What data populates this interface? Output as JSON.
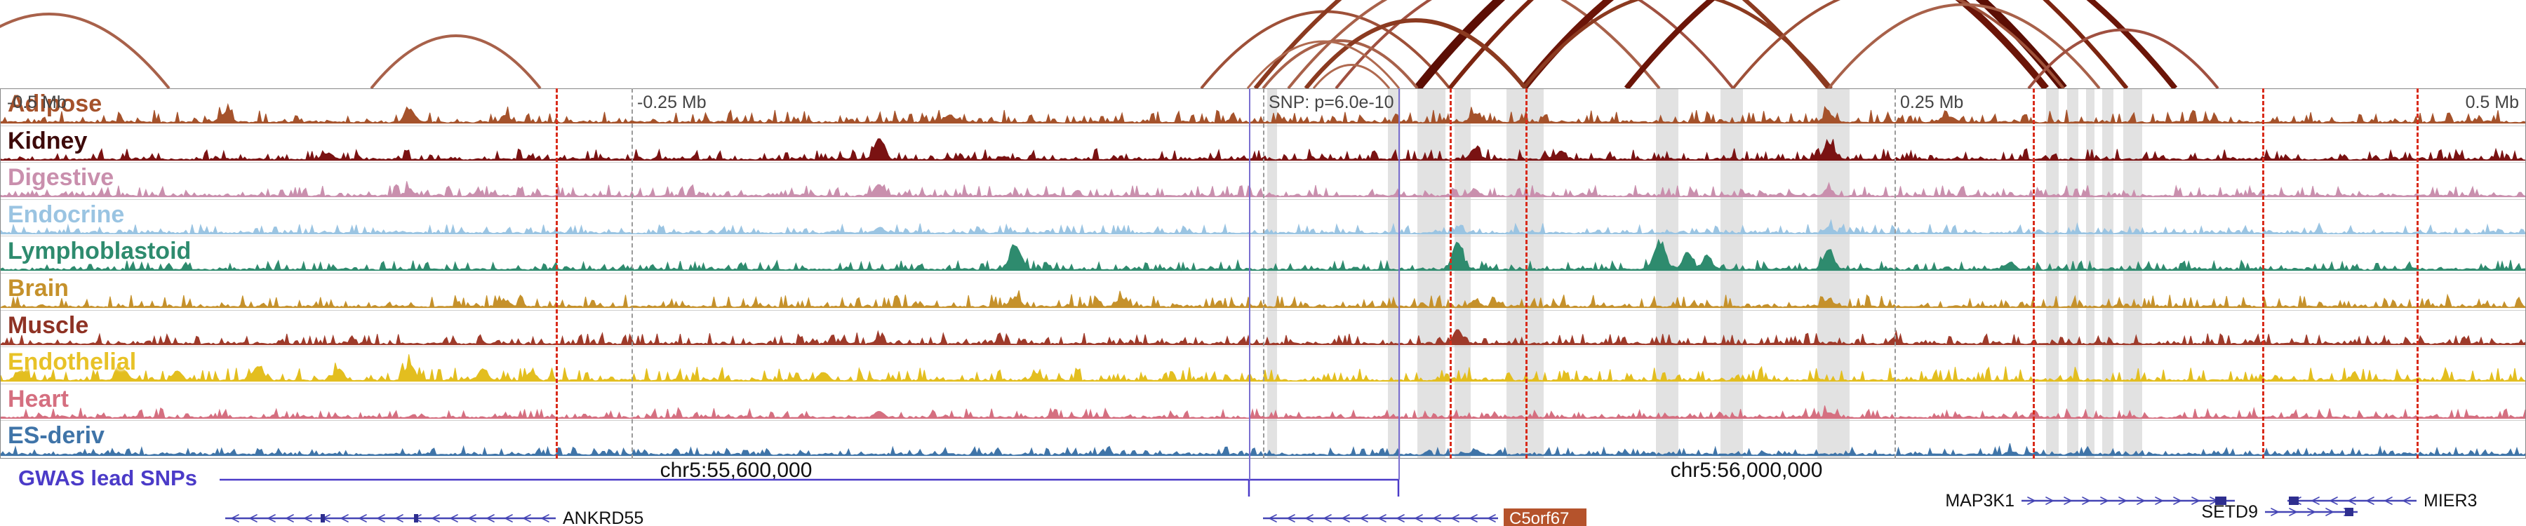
{
  "axis": {
    "ticks": [
      {
        "label": "-0.5 Mb",
        "offset": -0.5,
        "align": "left"
      },
      {
        "label": "-0.25 Mb",
        "offset": -0.25,
        "align": "inline"
      },
      {
        "label": "SNP: p=6.0e-10",
        "offset": 0,
        "align": "inline"
      },
      {
        "label": "0.25 Mb",
        "offset": 0.25,
        "align": "inline"
      },
      {
        "label": "0.5 Mb",
        "offset": 0.5,
        "align": "right"
      }
    ]
  },
  "chart_data": {
    "type": "area",
    "subtype": "genome-browser-multitrack",
    "x_range_mb": [
      -0.5,
      0.5
    ],
    "gridlines_mb": [
      -0.25,
      0,
      0.25
    ],
    "red_dashed_lines_mb": [
      -0.28,
      0.0739,
      0.1039,
      0.3047,
      0.3956,
      0.4567
    ],
    "snp_region_lines_mb": [
      -0.0056,
      0.0536
    ],
    "highlights_mb": [
      [
        0.0017,
        0.0056
      ],
      [
        0.0494,
        0.0544
      ],
      [
        0.0611,
        0.0722
      ],
      [
        0.0758,
        0.0822
      ],
      [
        0.0964,
        0.1111
      ],
      [
        0.1556,
        0.1644
      ],
      [
        0.1811,
        0.19
      ],
      [
        0.2194,
        0.2322
      ],
      [
        0.31,
        0.315
      ],
      [
        0.3183,
        0.3228
      ],
      [
        0.3258,
        0.3292
      ],
      [
        0.3322,
        0.3367
      ],
      [
        0.3406,
        0.3481
      ]
    ],
    "arcs": [
      [
        -0.528,
        -0.433,
        2,
        "#A8614A"
      ],
      [
        -0.353,
        -0.286,
        2,
        "#A8614A"
      ],
      [
        -0.0244,
        0.0739,
        2,
        "#9E5038"
      ],
      [
        -0.003,
        0.224,
        3,
        "#8B3A20"
      ],
      [
        0.01,
        0.157,
        2,
        "#A8614A"
      ],
      [
        0.029,
        0.186,
        2,
        "#A05040"
      ],
      [
        0.061,
        0.317,
        6,
        "#5C0E04"
      ],
      [
        0.103,
        0.31,
        5,
        "#6B1508"
      ],
      [
        0.074,
        0.342,
        3,
        "#7B2410"
      ],
      [
        0.0,
        0.061,
        2,
        "#A8614A"
      ],
      [
        0.103,
        0.225,
        2.5,
        "#8B3A20"
      ],
      [
        0.186,
        0.317,
        2,
        "#9E5038"
      ],
      [
        0.144,
        0.361,
        4,
        "#6B1508"
      ],
      [
        0.224,
        0.331,
        2,
        "#A8614A"
      ],
      [
        0.303,
        0.378,
        2,
        "#A05040"
      ],
      [
        0.017,
        0.104,
        3,
        "#8B3A20"
      ],
      [
        -0.006,
        0.054,
        1.5,
        "#B06A50"
      ],
      [
        0.02,
        0.05,
        1.5,
        "#B06A50"
      ]
    ],
    "tracks": [
      {
        "label": "Adipose",
        "color": "#A5522B",
        "label_color": "#A5522B",
        "seed": 11,
        "noise": 8,
        "peaks": [
          [
            -0.411,
            12,
            8
          ],
          [
            -0.338,
            18,
            7
          ],
          [
            -0.3,
            9,
            6
          ],
          [
            -0.124,
            10,
            7
          ],
          [
            0.084,
            12,
            7
          ],
          [
            0.224,
            12,
            7
          ],
          [
            0.272,
            8,
            7
          ]
        ]
      },
      {
        "label": "Kidney",
        "color": "#7A1212",
        "label_color": "#3D0A0A",
        "seed": 22,
        "noise": 7,
        "peaks": [
          [
            -0.37,
            8,
            6
          ],
          [
            -0.152,
            30,
            7
          ],
          [
            0.084,
            14,
            6
          ],
          [
            0.118,
            12,
            6
          ],
          [
            0.224,
            22,
            7
          ]
        ]
      },
      {
        "label": "Digestive",
        "color": "#C98FAD",
        "label_color": "#C98FAD",
        "seed": 33,
        "noise": 7,
        "peaks": [
          [
            -0.338,
            8,
            6
          ],
          [
            -0.152,
            16,
            7
          ],
          [
            0.084,
            8,
            6
          ],
          [
            0.224,
            10,
            6
          ]
        ]
      },
      {
        "label": "Endocrine",
        "color": "#9AC4E2",
        "label_color": "#9AC4E2",
        "seed": 44,
        "noise": 6,
        "peaks": [
          [
            -0.152,
            8,
            6
          ],
          [
            0.077,
            6,
            6
          ],
          [
            0.224,
            8,
            6
          ]
        ]
      },
      {
        "label": "Lymphoblastoid",
        "color": "#2E8B6E",
        "label_color": "#2E8B6E",
        "seed": 55,
        "noise": 6,
        "peaks": [
          [
            -0.098,
            34,
            8
          ],
          [
            0.077,
            40,
            7
          ],
          [
            0.157,
            36,
            8
          ],
          [
            0.168,
            26,
            6
          ],
          [
            0.176,
            20,
            6
          ],
          [
            0.224,
            28,
            7
          ],
          [
            0.296,
            10,
            6
          ]
        ]
      },
      {
        "label": "Brain",
        "color": "#C5912B",
        "label_color": "#C5912B",
        "seed": 66,
        "noise": 8,
        "peaks": [
          [
            -0.3,
            8,
            6
          ],
          [
            -0.098,
            12,
            7
          ],
          [
            -0.056,
            10,
            7
          ],
          [
            0.084,
            10,
            6
          ],
          [
            0.224,
            10,
            6
          ]
        ]
      },
      {
        "label": "Muscle",
        "color": "#9E3A2A",
        "label_color": "#8E3224",
        "seed": 77,
        "noise": 7,
        "peaks": [
          [
            -0.152,
            8,
            6
          ],
          [
            0.077,
            20,
            6
          ],
          [
            0.25,
            6,
            6
          ]
        ]
      },
      {
        "label": "Endothelial",
        "color": "#E3BE1F",
        "label_color": "#E8C227",
        "seed": 88,
        "noise": 9,
        "peaks": [
          [
            -0.492,
            14,
            7
          ],
          [
            -0.452,
            18,
            7
          ],
          [
            -0.43,
            14,
            6
          ],
          [
            -0.398,
            20,
            7
          ],
          [
            -0.366,
            16,
            6
          ],
          [
            -0.338,
            22,
            7
          ],
          [
            -0.309,
            16,
            6
          ],
          [
            -0.29,
            12,
            6
          ],
          [
            -0.174,
            12,
            6
          ],
          [
            -0.09,
            10,
            6
          ]
        ]
      },
      {
        "label": "Heart",
        "color": "#D56F80",
        "label_color": "#D56F80",
        "seed": 99,
        "noise": 6,
        "peaks": [
          [
            -0.152,
            8,
            6
          ],
          [
            0.224,
            6,
            6
          ]
        ]
      },
      {
        "label": "ES-deriv",
        "color": "#3F74A8",
        "label_color": "#3F74A8",
        "seed": 110,
        "noise": 5,
        "peaks": [
          [
            0.084,
            6,
            6
          ],
          [
            0.296,
            5,
            5
          ]
        ]
      }
    ],
    "coordinate_labels": [
      {
        "text": "chr5:55,600,000",
        "offset_mb": -0.2086
      },
      {
        "text": "chr5:56,000,000",
        "offset_mb": 0.1914
      }
    ],
    "gwas_track": {
      "label": "GWAS lead SNPs",
      "color": "#4B3BC8",
      "line_start_mb": -0.413,
      "snp_ticks_mb": [
        -0.0056,
        0.0536
      ]
    },
    "genes": [
      {
        "name": "ANKRD55",
        "start_mb": -0.4108,
        "end_mb": -0.28,
        "strand": "-",
        "y": 85,
        "label_side": "right",
        "blocks_mb": [
          [
            -0.373,
            -0.3714
          ],
          [
            -0.336,
            -0.3344
          ]
        ]
      },
      {
        "name": "C5orf67",
        "start_mb": 0.0,
        "end_mb": 0.0931,
        "strand": "-",
        "y": 85,
        "label_side": "right",
        "boxed": true,
        "box_color": "#B5532C",
        "blocks_mb": []
      },
      {
        "name": "MAP3K1",
        "start_mb": 0.3003,
        "end_mb": 0.3847,
        "strand": "+",
        "y": 60,
        "label_side": "left",
        "blocks_mb": [
          [
            0.377,
            0.3814
          ]
        ]
      },
      {
        "name": "SETD9",
        "start_mb": 0.3967,
        "end_mb": 0.4333,
        "strand": "+",
        "y": 76,
        "label_side": "left",
        "blocks_mb": [
          [
            0.4283,
            0.4317
          ]
        ]
      },
      {
        "name": "MIER3",
        "start_mb": 0.4056,
        "end_mb": 0.4567,
        "strand": "-",
        "y": 60,
        "label_side": "right",
        "blocks_mb": [
          [
            0.4061,
            0.41
          ]
        ]
      }
    ]
  }
}
